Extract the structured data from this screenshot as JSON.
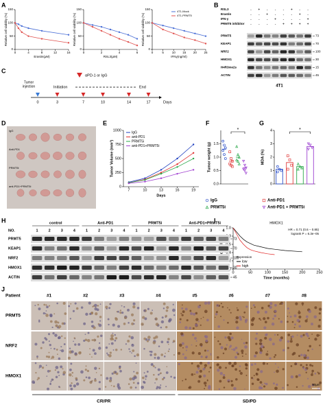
{
  "panel_labels": [
    "A",
    "B",
    "C",
    "D",
    "E",
    "F",
    "G",
    "H",
    "I",
    "J"
  ],
  "chart_data": [
    {
      "type": "line",
      "xlabel": "Erastin(μM)",
      "ylabel": "Relative cell viability (%)",
      "x": [
        0,
        1,
        2,
        4,
        8,
        16
      ],
      "xlim": [
        0,
        16
      ],
      "xticks": [
        0,
        4,
        8,
        12,
        16
      ],
      "ylim": [
        0,
        150
      ],
      "yticks": [
        0,
        50,
        100,
        150
      ],
      "series": [
        {
          "color": "#4a6fd6",
          "values": [
            100,
            95,
            88,
            80,
            70,
            55
          ]
        },
        {
          "color": "#e0504d",
          "values": [
            100,
            80,
            65,
            50,
            40,
            25
          ]
        }
      ]
    },
    {
      "type": "line",
      "xlabel": "RSL3(μM)",
      "ylabel": "Relative cell viability (%)",
      "x": [
        0,
        1,
        2,
        3,
        4,
        5,
        6
      ],
      "xlim": [
        0,
        6
      ],
      "xticks": [
        0,
        2,
        4,
        6
      ],
      "ylim": [
        0,
        150
      ],
      "yticks": [
        0,
        50,
        100,
        150
      ],
      "series": [
        {
          "color": "#4a6fd6",
          "values": [
            100,
            92,
            85,
            75,
            65,
            55,
            40
          ]
        },
        {
          "color": "#e0504d",
          "values": [
            100,
            85,
            70,
            55,
            40,
            28,
            15
          ]
        }
      ]
    },
    {
      "type": "line",
      "xlabel": "IFNγ(ng/ml)",
      "ylabel": "Relative cell viability (%)",
      "x": [
        0,
        5,
        10,
        15,
        20,
        25
      ],
      "xlim": [
        0,
        25
      ],
      "xticks": [
        0,
        5,
        10,
        15,
        20,
        25
      ],
      "ylim": [
        0,
        150
      ],
      "yticks": [
        0,
        50,
        100,
        150
      ],
      "series": [
        {
          "name": "4T1-Mock",
          "color": "#4a6fd6",
          "values": [
            100,
            90,
            80,
            70,
            60,
            50
          ]
        },
        {
          "name": "4T1-PRMT5",
          "color": "#e0504d",
          "values": [
            100,
            75,
            60,
            45,
            35,
            22
          ]
        }
      ]
    },
    {
      "type": "line",
      "xlabel": "Days",
      "ylabel": "Tumor Volume (mm³)",
      "x": [
        7,
        10,
        13,
        16,
        19
      ],
      "xlim": [
        6,
        20
      ],
      "xticks": [
        7,
        10,
        13,
        16,
        19
      ],
      "ylim": [
        0,
        1000
      ],
      "yticks": [
        0,
        250,
        500,
        750,
        1000
      ],
      "series": [
        {
          "name": "IgG",
          "color": "#1f3fbf",
          "values": [
            80,
            150,
            300,
            500,
            750
          ]
        },
        {
          "name": "anti-PD1",
          "color": "#e03030",
          "values": [
            70,
            130,
            250,
            400,
            600
          ]
        },
        {
          "name": "PRMT5i",
          "color": "#2aa84a",
          "values": [
            70,
            120,
            230,
            350,
            500
          ]
        },
        {
          "name": "anti-PD1+PRMT5i",
          "color": "#a040d0",
          "values": [
            60,
            90,
            150,
            230,
            300
          ]
        }
      ]
    },
    {
      "type": "dot",
      "ylabel": "Tumor weight (g)",
      "ylim": [
        0,
        2
      ],
      "yticks": [
        {
          "value": 0,
          "label": "0.0"
        },
        {
          "value": 0.5,
          "label": "0.5"
        },
        {
          "value": 1,
          "label": "1.0"
        },
        {
          "value": 1.5,
          "label": "1.5"
        }
      ],
      "annotation": "*",
      "series": [
        {
          "name": "IgG",
          "color": "#2b4fc9",
          "marker": "circle",
          "mean": 1.3,
          "points": [
            1.6,
            1.45,
            1.35,
            1.25,
            1.1,
            0.95
          ]
        },
        {
          "name": "Anti-PD1",
          "color": "#e03a3a",
          "marker": "square",
          "mean": 0.85,
          "points": [
            1.2,
            0.95,
            0.85,
            0.75,
            0.7,
            0.65
          ]
        },
        {
          "name": "PRMT5i",
          "color": "#2aa84a",
          "marker": "triangle",
          "mean": 1.0,
          "points": [
            1.4,
            1.1,
            1.0,
            0.9,
            0.85,
            0.75
          ]
        },
        {
          "name": "Anti-PD1 + PRMT5i",
          "color": "#9b3fd0",
          "marker": "triangle-down",
          "mean": 0.6,
          "points": [
            0.85,
            0.7,
            0.6,
            0.55,
            0.5,
            0.4
          ]
        }
      ]
    },
    {
      "type": "bar",
      "ylabel": "MDA (%)",
      "ylim": [
        0,
        4
      ],
      "yticks": [
        0,
        1,
        2,
        3,
        4
      ],
      "annotation": "*",
      "series": [
        {
          "color": "#2b4fc9",
          "marker": "circle",
          "mean": 1.1,
          "points": [
            1.3,
            1.1,
            1.0,
            0.9
          ]
        },
        {
          "color": "#e03a3a",
          "marker": "square",
          "mean": 1.6,
          "points": [
            2.1,
            1.8,
            1.4,
            1.1
          ]
        },
        {
          "color": "#2aa84a",
          "marker": "triangle",
          "mean": 1.3,
          "points": [
            1.5,
            1.3,
            1.2,
            1.1
          ]
        },
        {
          "color": "#9b3fd0",
          "marker": "triangle-down",
          "mean": 2.8,
          "points": [
            3.0,
            2.9,
            2.7,
            2.6
          ]
        }
      ]
    },
    {
      "type": "km",
      "title": "HMOX1",
      "annotations": [
        "HR = 0.71 (0.6 − 0.85)",
        "logrank P = 6.3e−05"
      ],
      "xlabel": "Time (months)",
      "ylabel": "Probability",
      "legend_title": "Expression",
      "xlim": [
        0,
        250
      ],
      "xticks": [
        0,
        50,
        100,
        150,
        200,
        250
      ],
      "ylim": [
        0,
        1
      ],
      "yticks": [
        {
          "value": 0,
          "label": "0.0"
        },
        {
          "value": 0.2,
          "label": "0.2"
        },
        {
          "value": 0.4,
          "label": "0.4"
        },
        {
          "value": 0.6,
          "label": "0.6"
        },
        {
          "value": 0.8,
          "label": "0.8"
        },
        {
          "value": 1,
          "label": "1.0"
        }
      ],
      "series": [
        {
          "name": "low",
          "color": "#000000",
          "x": [
            0,
            10,
            20,
            30,
            40,
            50,
            60,
            80,
            100,
            120,
            150,
            200
          ],
          "values": [
            1,
            0.9,
            0.8,
            0.72,
            0.66,
            0.62,
            0.58,
            0.54,
            0.5,
            0.48,
            0.45,
            0.42
          ]
        },
        {
          "name": "high",
          "color": "#e02020",
          "x": [
            0,
            10,
            20,
            30,
            40,
            50,
            60,
            80,
            100,
            120
          ],
          "values": [
            1,
            0.85,
            0.7,
            0.6,
            0.52,
            0.47,
            0.44,
            0.4,
            0.37,
            0.35
          ]
        }
      ]
    }
  ],
  "blot_B": {
    "treatments": [
      {
        "label": "RSL3",
        "signs": [
          "-",
          "+",
          "-",
          "-",
          "-",
          "+",
          "-",
          "-"
        ]
      },
      {
        "label": "Erastin",
        "signs": [
          "-",
          "-",
          "+",
          "-",
          "-",
          "-",
          "+",
          "-"
        ]
      },
      {
        "label": "IFN-γ",
        "signs": [
          "-",
          "-",
          "-",
          "+",
          "-",
          "-",
          "-",
          "+"
        ]
      },
      {
        "label": "PRMT5 inhibitor",
        "signs": [
          "-",
          "-",
          "-",
          "-",
          "+",
          "+",
          "+",
          "+"
        ]
      }
    ],
    "proteins": [
      {
        "name": "PRMT5",
        "mw": "73"
      },
      {
        "name": "KEAP1",
        "mw": "70"
      },
      {
        "name": "NRF2",
        "mw": "100"
      },
      {
        "name": "HMOX1",
        "mw": "30"
      },
      {
        "name": "H4R3me2s",
        "mw": "15"
      },
      {
        "name": "ACTIN",
        "mw": "45"
      }
    ],
    "cell_line": "4T1"
  },
  "timeline_C": {
    "injection_lines": [
      "Tumor",
      "injection"
    ],
    "initiation": "Initiation",
    "treatment": "αPD-1 or IgG",
    "end": "End",
    "days": [
      0,
      3,
      7,
      10,
      14,
      17
    ],
    "unit": "Days"
  },
  "photo_D": {
    "groups": [
      "IgG",
      "Anti-PD1",
      "PRMT5i",
      "anti-PD1+PRMT5i"
    ]
  },
  "blot_H": {
    "header": "NO.",
    "groups": [
      "control",
      "Anti-PD1",
      "PRMT5i",
      "Anti-PD1+PRMT5i"
    ],
    "lanes": [
      "1",
      "2",
      "3",
      "4"
    ],
    "proteins": [
      {
        "name": "PRMT5",
        "mw": "73"
      },
      {
        "name": "KEAP1",
        "mw": "70"
      },
      {
        "name": "NRF2",
        "mw": "100"
      },
      {
        "name": "HMOX1",
        "mw": "30"
      },
      {
        "name": "ACTIN",
        "mw": "45"
      }
    ]
  },
  "ihc_J": {
    "header": "Patient",
    "patients": [
      "#1",
      "#2",
      "#3",
      "#4",
      "#5",
      "#6",
      "#7",
      "#8"
    ],
    "stains": [
      "PRMT5",
      "NRF2",
      "HMOX1"
    ],
    "response_groups": [
      "CR/PR",
      "SD/PD"
    ],
    "scale_bar": "50μm"
  }
}
